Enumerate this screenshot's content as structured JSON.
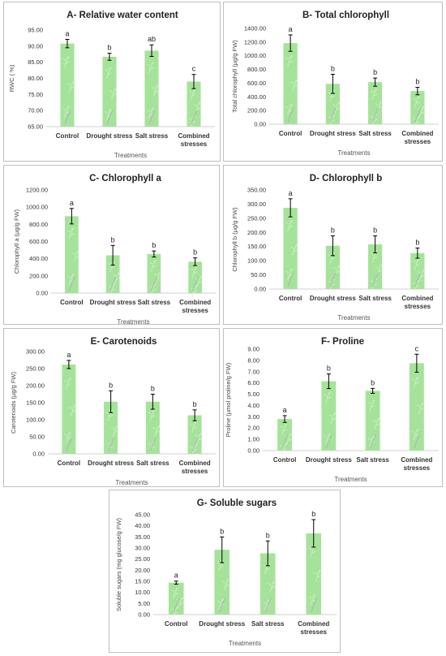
{
  "bar_color": "#a6e39a",
  "bar_pattern_color": "#d6f2cf",
  "error_color": "#000000",
  "chart_data": [
    {
      "id": "A",
      "type": "bar",
      "title": "A- Relative water content",
      "xlabel": "Treatments",
      "ylabel": "RWC ( %)",
      "categories": [
        "Control",
        "Drought stress",
        "Salt stress",
        "Combined stresses"
      ],
      "values": [
        90.8,
        86.7,
        88.6,
        79.0
      ],
      "errors": [
        1.3,
        1.1,
        1.8,
        2.2
      ],
      "letters": [
        "a",
        "b",
        "ab",
        "c"
      ],
      "ylim": [
        65,
        95
      ],
      "ticks": [
        "65.00",
        "70.00",
        "75.00",
        "80.00",
        "85.00",
        "90.00",
        "95.00"
      ]
    },
    {
      "id": "B",
      "type": "bar",
      "title": "B- Total chlorophyll",
      "xlabel": "Treatments",
      "ylabel": "Total chlorophyll (µg/g FW)",
      "categories": [
        "Control",
        "Drought stress",
        "Salt stress",
        "Combined stresses"
      ],
      "values": [
        1185,
        590,
        615,
        485
      ],
      "errors": [
        120,
        140,
        60,
        55
      ],
      "letters": [
        "a",
        "b",
        "b",
        "b"
      ],
      "ylim": [
        0,
        1400
      ],
      "ticks": [
        "0.00",
        "200.00",
        "400.00",
        "600.00",
        "800.00",
        "1000.00",
        "1200.00",
        "1400.00"
      ]
    },
    {
      "id": "C",
      "type": "bar",
      "title": "C- Chlorophyll a",
      "xlabel": "Treatments",
      "ylabel": "Chlorophyll a (µg/g FW)",
      "categories": [
        "Control",
        "Drought stress",
        "Salt stress",
        "Combined stresses"
      ],
      "values": [
        895,
        440,
        455,
        365
      ],
      "errors": [
        90,
        115,
        35,
        45
      ],
      "letters": [
        "a",
        "b",
        "b",
        "b"
      ],
      "ylim": [
        0,
        1200
      ],
      "ticks": [
        "0.00",
        "200.00",
        "400.00",
        "600.00",
        "800.00",
        "1000.00",
        "1200.00"
      ]
    },
    {
      "id": "D",
      "type": "bar",
      "title": "D- Chlorophyll b",
      "xlabel": "Treatments",
      "ylabel": "Chlorophyll b (µg/g FW)",
      "categories": [
        "Control",
        "Drought stress",
        "Salt stress",
        "Combined stresses"
      ],
      "values": [
        287,
        153,
        158,
        127
      ],
      "errors": [
        32,
        35,
        30,
        18
      ],
      "letters": [
        "a",
        "b",
        "b",
        "b"
      ],
      "ylim": [
        0,
        350
      ],
      "ticks": [
        "0.00",
        "50.00",
        "100.00",
        "150.00",
        "200.00",
        "250.00",
        "300.00",
        "350.00"
      ]
    },
    {
      "id": "E",
      "type": "bar",
      "title": "E- Carotenoids",
      "xlabel": "Treatments",
      "ylabel": "Carotenoids (µg/g FW)",
      "categories": [
        "Control",
        "Drought stress",
        "Salt stress",
        "Combined stresses"
      ],
      "values": [
        262,
        153,
        153,
        113
      ],
      "errors": [
        12,
        32,
        22,
        16
      ],
      "letters": [
        "a",
        "b",
        "b",
        "b"
      ],
      "ylim": [
        0,
        300
      ],
      "ticks": [
        "0.00",
        "50.00",
        "100.00",
        "150.00",
        "200.00",
        "250.00",
        "300.00"
      ]
    },
    {
      "id": "F",
      "type": "bar",
      "title": "F- Proline",
      "xlabel": "Treatments",
      "ylabel": "Proline (µmol proline/g FW)",
      "categories": [
        "Control",
        "Drought stress",
        "Salt stress",
        "Combined stresses"
      ],
      "values": [
        2.8,
        6.15,
        5.3,
        7.75
      ],
      "errors": [
        0.3,
        0.65,
        0.22,
        0.8
      ],
      "letters": [
        "a",
        "b",
        "b",
        "c"
      ],
      "ylim": [
        0,
        9
      ],
      "ticks": [
        "0.00",
        "1.00",
        "2.00",
        "3.00",
        "4.00",
        "5.00",
        "6.00",
        "7.00",
        "8.00",
        "9.00"
      ]
    },
    {
      "id": "G",
      "type": "bar",
      "title": "G- Soluble sugars",
      "xlabel": "Treatments",
      "ylabel": "Soluble sugars (mg glucose/g FW)",
      "categories": [
        "Control",
        "Drought stress",
        "Salt stress",
        "Combined stresses"
      ],
      "values": [
        14.4,
        29.2,
        27.6,
        36.6
      ],
      "errors": [
        0.7,
        5.8,
        5.6,
        6.2
      ],
      "letters": [
        "a",
        "b",
        "b",
        "b"
      ],
      "ylim": [
        0,
        45
      ],
      "ticks": [
        "0.00",
        "5.00",
        "10.00",
        "15.00",
        "20.00",
        "25.00",
        "30.00",
        "35.00",
        "40.00",
        "45.00"
      ]
    }
  ]
}
